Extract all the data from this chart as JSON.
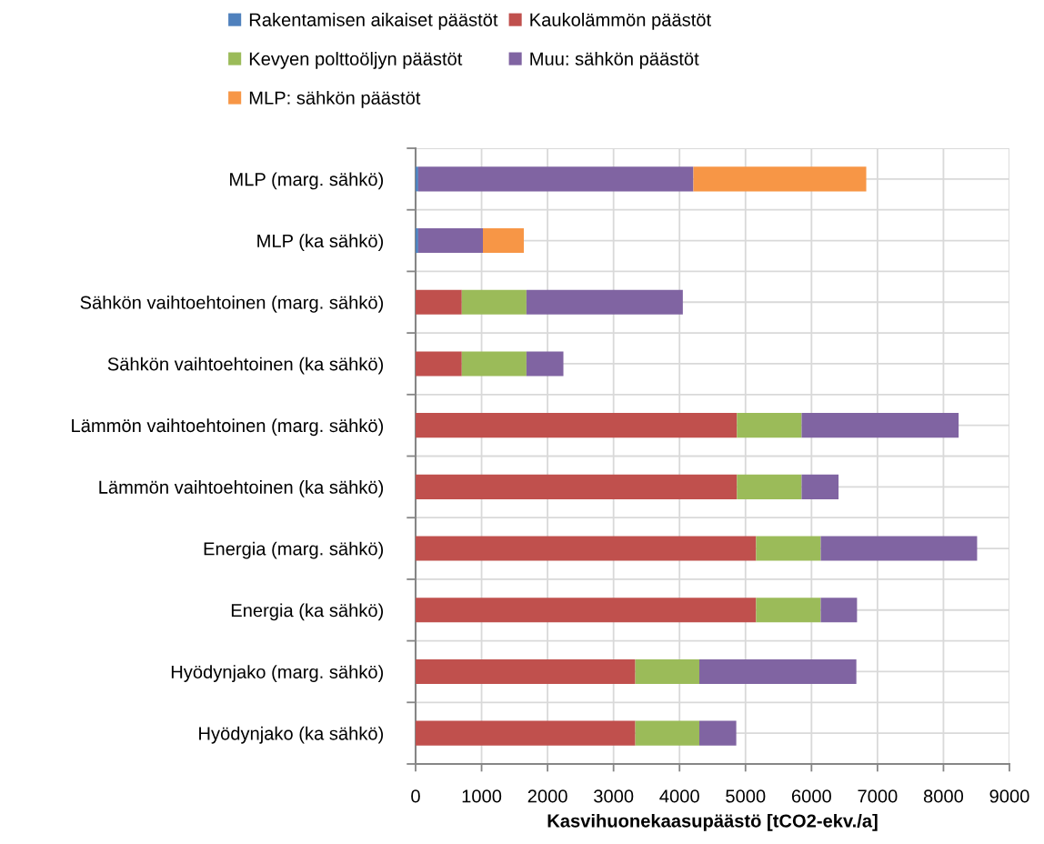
{
  "chart_data": {
    "type": "bar",
    "orientation": "horizontal",
    "stacked": true,
    "xlabel": "Kasvihuonekaasupäästö [tCO2-ekv./a]",
    "categories": [
      "MLP (marg. sähkö)",
      "MLP (ka sähkö)",
      "Sähkön vaihtoehtoinen (marg. sähkö)",
      "Sähkön vaihtoehtoinen (ka sähkö)",
      "Lämmön vaihtoehtoinen (marg. sähkö)",
      "Lämmön vaihtoehtoinen (ka sähkö)",
      "Energia (marg. sähkö)",
      "Energia (ka sähkö)",
      "Hyödynjako (marg. sähkö)",
      "Hyödynjako (ka sähkö)"
    ],
    "series": [
      {
        "name": "Rakentamisen aikaiset päästöt",
        "color": "#4f81bd",
        "values": [
          40,
          40,
          null,
          null,
          null,
          null,
          null,
          null,
          null,
          null
        ]
      },
      {
        "name": "Kaukolämmön päästöt",
        "color": "#c0504d",
        "values": [
          null,
          null,
          700,
          700,
          4870,
          4870,
          5160,
          5160,
          3330,
          3330
        ]
      },
      {
        "name": "Kevyen polttoöljyn päästöt",
        "color": "#9bbb59",
        "values": [
          null,
          null,
          980,
          980,
          980,
          980,
          980,
          980,
          970,
          970
        ]
      },
      {
        "name": "Muu: sähkön päästöt",
        "color": "#8064a2",
        "values": [
          4170,
          980,
          2370,
          560,
          2380,
          560,
          2370,
          550,
          2380,
          560
        ]
      },
      {
        "name": "MLP: sähkön päästöt",
        "color": "#f79646",
        "values": [
          2620,
          620,
          null,
          null,
          null,
          null,
          null,
          null,
          null,
          null
        ]
      }
    ],
    "xlim": [
      0,
      9000
    ],
    "xticks": [
      0,
      1000,
      2000,
      3000,
      4000,
      5000,
      6000,
      7000,
      8000,
      9000
    ],
    "grid": true,
    "legend": "top"
  }
}
